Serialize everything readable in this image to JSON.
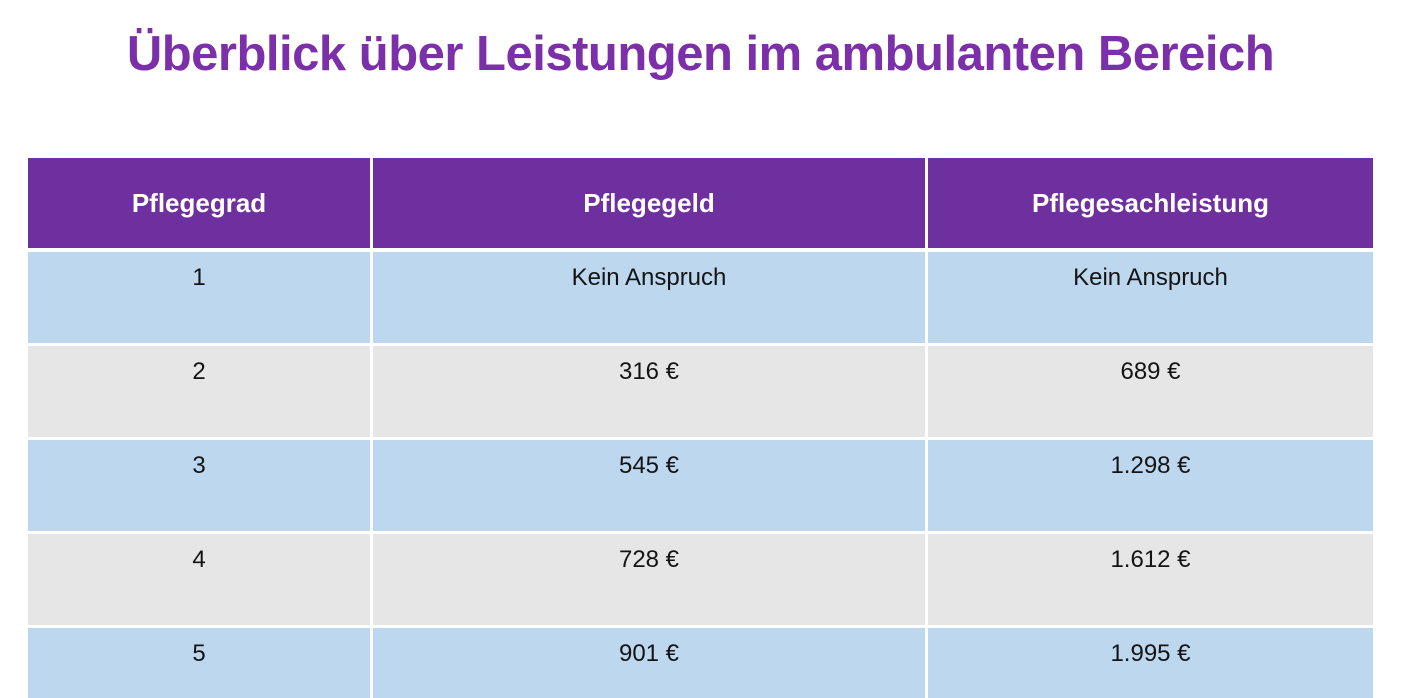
{
  "title": "Überblick über Leistungen im ambulanten Bereich",
  "colors": {
    "title_text": "#7b2fa8",
    "header_bg": "#6e2f9f",
    "header_text": "#ffffff",
    "row_blue": "#bdd7ee",
    "row_gray": "#e7e6e6",
    "cell_text": "#141414",
    "page_bg": "#ffffff"
  },
  "table": {
    "columns": [
      "Pflegegrad",
      "Pflegegeld",
      "Pflegesachleistung"
    ],
    "rows": [
      [
        "1",
        "Kein Anspruch",
        "Kein Anspruch"
      ],
      [
        "2",
        "316 €",
        "689 €"
      ],
      [
        "3",
        "545 €",
        "1.298 €"
      ],
      [
        "4",
        "728 €",
        "1.612 €"
      ],
      [
        "5",
        "901 €",
        "1.995 €"
      ]
    ]
  },
  "chart_data": {
    "type": "table",
    "title": "Überblick über Leistungen im ambulanten Bereich",
    "columns": [
      "Pflegegrad",
      "Pflegegeld",
      "Pflegesachleistung"
    ],
    "rows": [
      {
        "Pflegegrad": "1",
        "Pflegegeld": "Kein Anspruch",
        "Pflegesachleistung": "Kein Anspruch"
      },
      {
        "Pflegegrad": "2",
        "Pflegegeld": "316 €",
        "Pflegesachleistung": "689 €"
      },
      {
        "Pflegegrad": "3",
        "Pflegegeld": "545 €",
        "Pflegesachleistung": "1.298 €"
      },
      {
        "Pflegegrad": "4",
        "Pflegegeld": "728 €",
        "Pflegesachleistung": "1.612 €"
      },
      {
        "Pflegegrad": "5",
        "Pflegegeld": "901 €",
        "Pflegesachleistung": "1.995 €"
      }
    ]
  }
}
